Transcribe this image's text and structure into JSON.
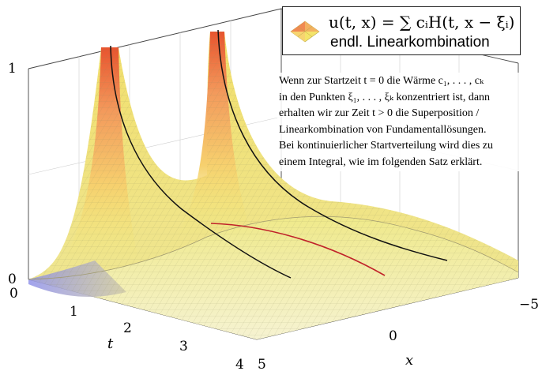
{
  "legend": {
    "formula_lhs": "u(t, x) = ",
    "formula_rhs": "∑ cᵢH(t, x − ξᵢ)",
    "label": "endl. Linearkombination"
  },
  "annotation": {
    "lines": [
      "Wenn zur Startzeit t = 0 die Wärme c₁, . . . , cₖ",
      "in den Punkten ξ₁, . . . , ξₖ konzentriert ist, dann",
      "erhalten wir zur Zeit t > 0 die Superposition /",
      "Linearkombination von Fundamentallösungen.",
      "Bei kontinuierlicher Startverteilung wird dies zu",
      "einem Integral, wie im folgenden Satz erklärt."
    ]
  },
  "axes": {
    "t_label": "t",
    "x_label": "x",
    "t_ticks": [
      "0",
      "1",
      "2",
      "3",
      "4"
    ],
    "x_ticks": [
      "5",
      "0",
      "−5"
    ],
    "z_ticks": [
      "0",
      "1"
    ]
  },
  "colors": {
    "surface_low": "#8f90e6",
    "surface_mid": "#f2ec74",
    "surface_high": "#f0905a",
    "curve_black": "#111111",
    "curve_red": "#c0222a",
    "box": "#444444"
  }
}
